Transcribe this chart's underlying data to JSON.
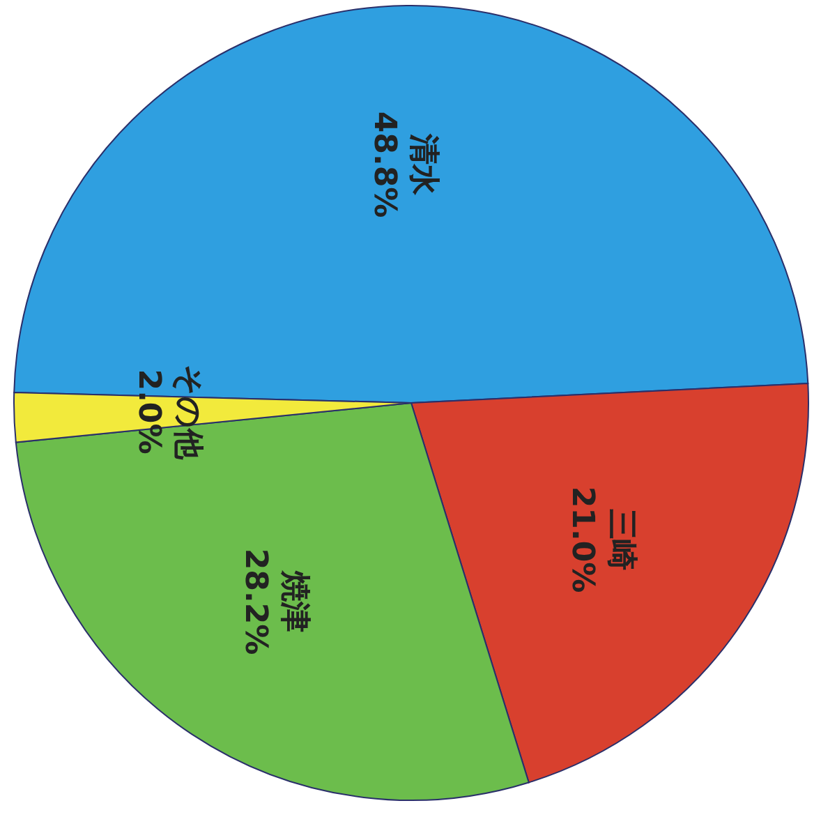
{
  "chart_data": {
    "type": "pie",
    "categories": [
      "清水",
      "三崎",
      "焼津",
      "その他"
    ],
    "values": [
      48.8,
      21.0,
      28.2,
      2.0
    ],
    "value_labels": [
      "48.8%",
      "21.0%",
      "28.2%",
      "2.0%"
    ],
    "colors": [
      "#2f9fe0",
      "#d8402e",
      "#6cbd4c",
      "#f2ea3c"
    ]
  }
}
